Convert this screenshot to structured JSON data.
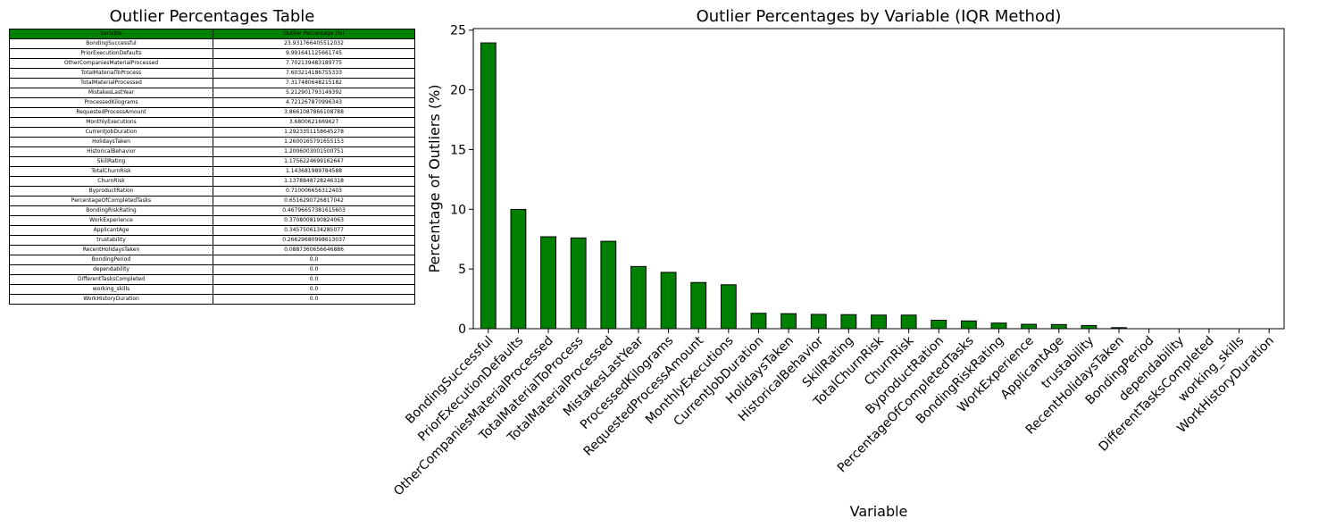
{
  "table": {
    "title": "Outlier Percentages Table",
    "headers": [
      "Variable",
      "Outlier Percentage (%)"
    ],
    "rows": [
      [
        "BondingSuccessful",
        "23.931766405512032"
      ],
      [
        "PriorExecutionDefaults",
        "9.991641125661745"
      ],
      [
        "OtherCompaniesMaterialProcessed",
        "7.702139483189775"
      ],
      [
        "TotalMaterialToProcess",
        "7.603214186755333"
      ],
      [
        "TotalMaterialProcessed",
        "7.317480648215182"
      ],
      [
        "MistakesLastYear",
        "5.212901793149392"
      ],
      [
        "ProcessedKilograms",
        "4.721267870996343"
      ],
      [
        "RequestedProcessAmount",
        "3.8661087866108788"
      ],
      [
        "MonthlyExecutions",
        "3.6800621669627"
      ],
      [
        "CurrentJobDuration",
        "1.2923351158645278"
      ],
      [
        "HolidaysTaken",
        "1.2600165791655153"
      ],
      [
        "HistoricalBehavior",
        "1.2006003001500751"
      ],
      [
        "SkillRating",
        "1.1756224699162647"
      ],
      [
        "TotalChurnRisk",
        "1.143681989784588"
      ],
      [
        "ChurnRisk",
        "1.1378848728246318"
      ],
      [
        "ByproductRation",
        "0.710006656312403"
      ],
      [
        "PercentageOfCompletedTasks",
        "0.6516290726817042"
      ],
      [
        "BondingRiskRating",
        "0.46796657381615603"
      ],
      [
        "WorkExperience",
        "0.3708008190824063"
      ],
      [
        "ApplicantAge",
        "0.3457506134285077"
      ],
      [
        "trustability",
        "0.26629680998613037"
      ],
      [
        "RecentHolidaysTaken",
        "0.0887360656646886"
      ],
      [
        "BondingPeriod",
        "0.0"
      ],
      [
        "dependability",
        "0.0"
      ],
      [
        "DifferentTasksCompleted",
        "0.0"
      ],
      [
        "working_skills",
        "0.0"
      ],
      [
        "WorkHistoryDuration",
        "0.0"
      ]
    ]
  },
  "chart_data": {
    "type": "bar",
    "title": "Outlier Percentages by Variable (IQR Method)",
    "xlabel": "Variable",
    "ylabel": "Percentage of Outliers (%)",
    "categories": [
      "BondingSuccessful",
      "PriorExecutionDefaults",
      "OtherCompaniesMaterialProcessed",
      "TotalMaterialToProcess",
      "TotalMaterialProcessed",
      "MistakesLastYear",
      "ProcessedKilograms",
      "RequestedProcessAmount",
      "MonthlyExecutions",
      "CurrentJobDuration",
      "HolidaysTaken",
      "HistoricalBehavior",
      "SkillRating",
      "TotalChurnRisk",
      "ChurnRisk",
      "ByproductRation",
      "PercentageOfCompletedTasks",
      "BondingRiskRating",
      "WorkExperience",
      "ApplicantAge",
      "trustability",
      "RecentHolidaysTaken",
      "BondingPeriod",
      "dependability",
      "DifferentTasksCompleted",
      "working_skills",
      "WorkHistoryDuration"
    ],
    "values": [
      23.93,
      9.99,
      7.7,
      7.6,
      7.32,
      5.21,
      4.72,
      3.87,
      3.68,
      1.29,
      1.26,
      1.2,
      1.18,
      1.14,
      1.14,
      0.71,
      0.65,
      0.47,
      0.37,
      0.35,
      0.27,
      0.09,
      0.0,
      0.0,
      0.0,
      0.0,
      0.0
    ],
    "ylim": [
      0,
      25.13
    ],
    "yticks": [
      0,
      5,
      10,
      15,
      20,
      25
    ],
    "bar_color": "#008000",
    "edge_color": "#000000",
    "grid": false
  },
  "colors": {
    "header_fill": "#008000",
    "bar_fill": "#008000"
  }
}
